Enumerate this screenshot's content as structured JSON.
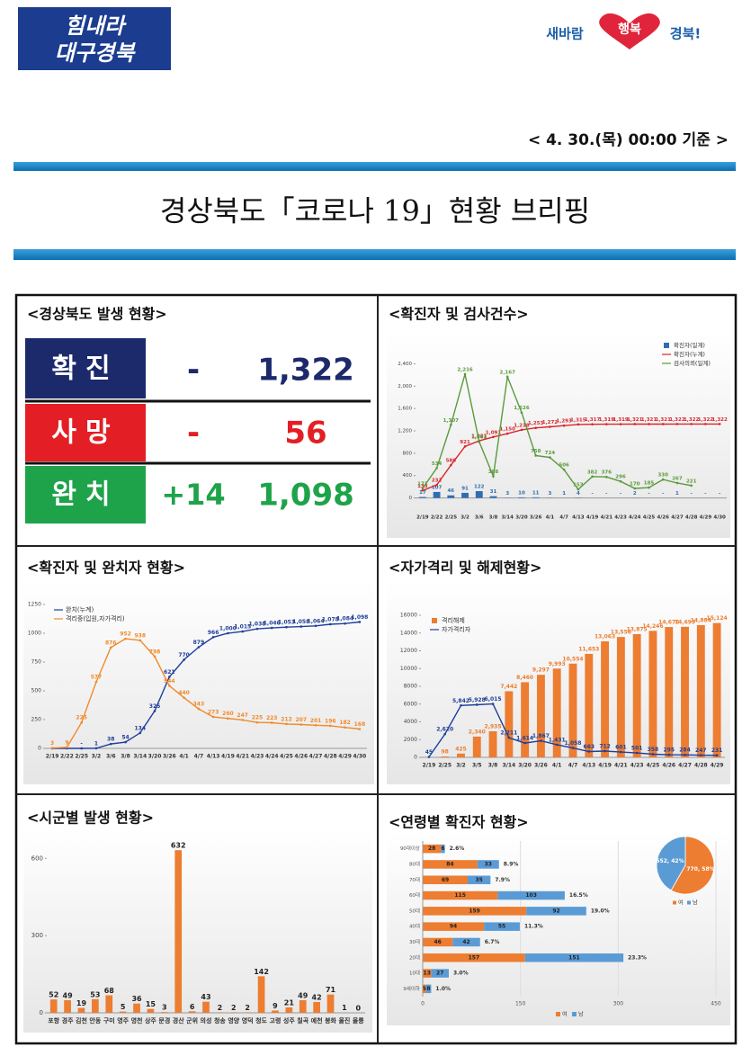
{
  "header": {
    "logo_left": [
      "힘내라",
      "대구경북"
    ],
    "logo_right": [
      "새바람",
      "행복",
      "경북!"
    ],
    "date": "< 4. 30.(목) 00:00 기준 >",
    "title": "경상북도「코로나 19」현황 브리핑"
  },
  "status_table": {
    "title": "<경상북도 발생 현황>",
    "rows": [
      {
        "label": "확진",
        "change": "-",
        "total": "1,322"
      },
      {
        "label": "사망",
        "change": "-",
        "total": "56"
      },
      {
        "label": "완치",
        "change": "+14",
        "total": "1,098"
      }
    ]
  },
  "chart_data": [
    {
      "type": "combo",
      "title": "<확진자 및 검사건수>",
      "categories": [
        "2/19",
        "2/22",
        "2/25",
        "3/2",
        "3/6",
        "3/8",
        "3/14",
        "3/20",
        "3/26",
        "4/1",
        "4/7",
        "4/13",
        "4/19",
        "4/21",
        "4/23",
        "4/24",
        "4/25",
        "4/26",
        "4/27",
        "4/28",
        "4/29",
        "4/30"
      ],
      "ylim": [
        -200,
        2600
      ],
      "yticks": [
        0,
        400,
        800,
        {
          "value": 1200,
          "label": "1,200"
        },
        {
          "value": 1600,
          "label": "1,600"
        },
        {
          "value": 2000,
          "label": "2,000"
        },
        {
          "value": 2400,
          "label": "2,400"
        }
      ],
      "grid": false,
      "legend": "top-right",
      "series": [
        {
          "name": "확진자(일계)",
          "kind": "bar",
          "color": "#2e6db4",
          "values": [
            17,
            107,
            46,
            91,
            122,
            31,
            3,
            10,
            11,
            3,
            1,
            4,
            0,
            0,
            0,
            2,
            0,
            0,
            1,
            0,
            0,
            0
          ],
          "value_labels": [
            "17",
            "107",
            "46",
            "91",
            "122",
            "31",
            "3",
            "10",
            "11",
            "3",
            "1",
            "4",
            "-",
            "-",
            "-",
            "2",
            "-",
            "-",
            "1",
            "-",
            "-",
            "-"
          ]
        },
        {
          "name": "확진자(누계)",
          "kind": "line",
          "color": "#d9262c",
          "values": [
            133,
            231,
            586,
            921,
            1021,
            1091,
            1150,
            1218,
            1253,
            1272,
            1293,
            1315,
            1317,
            1319,
            1319,
            1321,
            1321,
            1321,
            1322,
            1322,
            1322,
            1322
          ],
          "value_labels": [
            "133",
            "231",
            "586",
            "921",
            "1,021",
            "1,091",
            "1,150",
            "1,218",
            "1,253",
            "1,272",
            "1,293",
            "1,315",
            "1,317",
            "1,319",
            "1,319",
            "1,321",
            "1,321",
            "1,321",
            "1,322",
            "1,322",
            "1,322",
            "1,322"
          ]
        },
        {
          "name": "검사의뢰(일계)",
          "kind": "line",
          "color": "#5a9a3a",
          "values": [
            172,
            534,
            1307,
            2216,
            1003,
            388,
            2167,
            1526,
            758,
            724,
            506,
            153,
            382,
            376,
            296,
            170,
            185,
            330,
            267,
            221,
            null,
            null
          ],
          "value_labels": [
            "172",
            "534",
            "1,307",
            "2,216",
            "1,003",
            "388",
            "2,167",
            "1,526",
            "758",
            "724",
            "506",
            "153",
            "382",
            "376",
            "296",
            "170",
            "185",
            "330",
            "267",
            "221",
            null,
            null
          ]
        }
      ]
    },
    {
      "type": "line",
      "title": "<확진자 및 완치자 현황>",
      "categories": [
        "2/19",
        "2/22",
        "2/25",
        "3/2",
        "3/6",
        "3/8",
        "3/14",
        "3/20",
        "3/26",
        "4/1",
        "4/7",
        "4/13",
        "4/19",
        "4/21",
        "4/23",
        "4/24",
        "4/25",
        "4/26",
        "4/27",
        "4/28",
        "4/29",
        "4/30"
      ],
      "ylim": [
        0,
        1250
      ],
      "yticks": [
        0,
        250,
        500,
        750,
        1000,
        1250
      ],
      "grid": false,
      "legend": "top-left",
      "series": [
        {
          "name": "완치(누계)",
          "color": "#1f3f9a",
          "values": [
            0,
            0,
            0,
            1,
            38,
            54,
            134,
            325,
            621,
            770,
            879,
            966,
            1000,
            1015,
            1038,
            1046,
            1053,
            1058,
            1064,
            1078,
            1084,
            1098
          ],
          "value_labels": [
            null,
            null,
            "-",
            "1",
            "38",
            "54",
            "134",
            "325",
            "621",
            "770",
            "879",
            "966",
            "1,000",
            "1,015",
            "1,038",
            "1,046",
            "1,053",
            "1,058",
            "1,064",
            "1,078",
            "1,084",
            "1,098"
          ]
        },
        {
          "name": "격리중(입원,자가격리)",
          "color": "#f08a2c",
          "values": [
            3,
            9,
            225,
            577,
            876,
            952,
            938,
            798,
            544,
            440,
            343,
            273,
            260,
            247,
            225,
            223,
            212,
            207,
            201,
            196,
            182,
            168
          ]
        }
      ]
    },
    {
      "type": "combo",
      "title": "<자가격리 및 해제현황>",
      "categories": [
        "2/19",
        "2/25",
        "3/2",
        "3/5",
        "3/8",
        "3/14",
        "3/20",
        "3/26",
        "4/1",
        "4/7",
        "4/13",
        "4/19",
        "4/21",
        "4/23",
        "4/25",
        "4/26",
        "4/27",
        "4/28",
        "4/29"
      ],
      "ylim": [
        0,
        16000
      ],
      "yticks": [
        0,
        2000,
        4000,
        6000,
        8000,
        10000,
        12000,
        14000,
        16000
      ],
      "grid": false,
      "legend": "top-left",
      "series": [
        {
          "name": "격리해제",
          "kind": "bar",
          "color": "#ed7d31",
          "values": [
            null,
            98,
            425,
            2340,
            2935,
            7442,
            8460,
            9297,
            9993,
            10554,
            11653,
            13063,
            13556,
            13875,
            14246,
            14676,
            14699,
            14884,
            15124
          ],
          "value_labels": [
            null,
            "98",
            "425",
            "2,340",
            "2,935",
            "7,442",
            "8,460",
            "9,297",
            "9,993",
            "10,554",
            "11,653",
            "13,063",
            "13,556",
            "13,875",
            "14,246",
            "14,676",
            "14,699",
            "14,884",
            "15,124"
          ]
        },
        {
          "name": "자가격리자",
          "kind": "line",
          "color": "#1f3f9a",
          "values": [
            45,
            2620,
            5842,
            5928,
            6015,
            2211,
            1614,
            1867,
            1431,
            1058,
            663,
            712,
            601,
            501,
            358,
            295,
            284,
            247,
            231
          ],
          "value_labels": [
            "45",
            "2,620",
            "5,842",
            "5,928",
            "6,015",
            "2,211",
            "1,614",
            "1,867",
            "1,431",
            "1,058",
            "663",
            "712",
            "601",
            "501",
            "358",
            "295",
            "284",
            "247",
            "231"
          ]
        }
      ]
    },
    {
      "type": "bar",
      "title": "<시군별 발생 현황>",
      "categories": [
        "포항",
        "경주",
        "김천",
        "안동",
        "구미",
        "영주",
        "영천",
        "상주",
        "문경",
        "경산",
        "군위",
        "의성",
        "청송",
        "영양",
        "영덕",
        "청도",
        "고령",
        "성주",
        "칠곡",
        "예천",
        "봉화",
        "울진",
        "울릉"
      ],
      "values": [
        52,
        49,
        19,
        53,
        68,
        5,
        36,
        15,
        3,
        632,
        6,
        43,
        2,
        2,
        2,
        142,
        9,
        21,
        49,
        42,
        71,
        1,
        0
      ],
      "color": "#ed7d31",
      "ylim": [
        0,
        650
      ],
      "yticks": [
        0,
        300,
        600
      ],
      "grid": false
    },
    {
      "type": "hbar_stacked",
      "title": "<연령별 확진자 현황>",
      "categories": [
        "90대이상",
        "80대",
        "70대",
        "60대",
        "50대",
        "40대",
        "30대",
        "20대",
        "10대",
        "9세이하"
      ],
      "xlim": [
        0,
        450
      ],
      "xticks": [
        0,
        150,
        300,
        450
      ],
      "grid": true,
      "legend": "bottom",
      "series": [
        {
          "name": "여",
          "color": "#ed7d31",
          "values": [
            28,
            84,
            69,
            115,
            159,
            94,
            46,
            157,
            13,
            5
          ]
        },
        {
          "name": "남",
          "color": "#5b9bd5",
          "values": [
            6,
            33,
            35,
            103,
            92,
            55,
            42,
            151,
            27,
            8
          ]
        }
      ],
      "share_labels": [
        "2.6%",
        "8.9%",
        "7.9%",
        "16.5%",
        "19.0%",
        "11.3%",
        "6.7%",
        "23.3%",
        "3.0%",
        "1.0%"
      ]
    },
    {
      "type": "pie",
      "categories": [
        "여",
        "남"
      ],
      "values": [
        770,
        552
      ],
      "value_labels": [
        "770, 58%",
        "552, 42%"
      ],
      "colors": [
        "#ed7d31",
        "#5b9bd5"
      ],
      "legend": "bottom"
    }
  ]
}
